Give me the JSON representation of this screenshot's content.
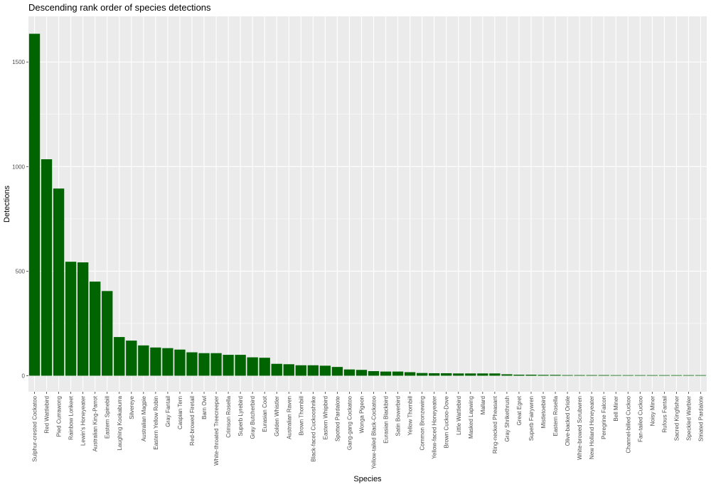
{
  "chart_data": {
    "type": "bar",
    "title": "Descending rank order of species detections",
    "xlabel": "Species",
    "ylabel": "Detections",
    "ylim": [
      0,
      1650
    ],
    "yticks": [
      0,
      500,
      1000,
      1500
    ],
    "grid": true,
    "legend": "none",
    "colors": {
      "bar": "#006400",
      "panel": "#ebebeb",
      "grid": "#ffffff"
    },
    "categories": [
      "Sulphur-crested Cockatoo",
      "Red Wattlebird",
      "Pied Currawong",
      "Rainbow Lorikeet",
      "Lewin's Honeyeater",
      "Australian King-Parrot",
      "Eastern Spinebill",
      "Laughing Kookaburra",
      "Silvereye",
      "Australian Magpie",
      "Eastern Yellow Robin",
      "Gray Fantail",
      "Caspian Tern",
      "Red-browed Firetail",
      "Barn Owl",
      "White-throated Treecreeper",
      "Crimson Rosella",
      "Superb Lyrebird",
      "Gray Butcherbird",
      "Eurasian Coot",
      "Golden Whistler",
      "Australian Raven",
      "Brown Thornbill",
      "Black-faced Cuckooshrike",
      "Eastern Whipbird",
      "Spotted Pardalote",
      "Gang-gang Cockatoo",
      "Wonga Pigeon",
      "Yellow-tailed Black-Cockatoo",
      "Eurasian Blackbird",
      "Satin Bowerbird",
      "Yellow Thornbill",
      "Common Bronzewing",
      "Yellow-faced Honeyeater",
      "Brown Cuckoo-Dove",
      "Little Wattlebird",
      "Masked Lapwing",
      "Mallard",
      "Ring-necked Pheasant",
      "Gray Shrikethrush",
      "Great Egret",
      "Superb Fairywren",
      "Mistletoebird",
      "Eastern Rosella",
      "Olive-backed Oriole",
      "White-browed Scrubwren",
      "New Holland Honeyeater",
      "Peregrine Falcon",
      "Bell Miner",
      "Channel-billed Cuckoo",
      "Fan-tailed Cuckoo",
      "Noisy Miner",
      "Rufous Fantail",
      "Sacred Kingfisher",
      "Speckled Warbler",
      "Striated Pardalote"
    ],
    "values": [
      1635,
      1035,
      895,
      545,
      542,
      450,
      405,
      185,
      168,
      145,
      135,
      132,
      125,
      112,
      108,
      108,
      100,
      100,
      88,
      86,
      57,
      55,
      50,
      50,
      48,
      42,
      30,
      28,
      22,
      20,
      20,
      17,
      13,
      12,
      12,
      11,
      11,
      11,
      11,
      7,
      5,
      5,
      4,
      4,
      3,
      3,
      3,
      3,
      1,
      1,
      1,
      1,
      1,
      1,
      1,
      1
    ]
  }
}
